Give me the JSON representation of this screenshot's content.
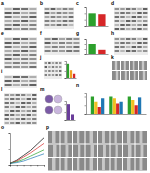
{
  "panel_labels": [
    "a",
    "b",
    "c",
    "d",
    "e",
    "f",
    "g",
    "h",
    "i",
    "j",
    "k",
    "l",
    "m",
    "n",
    "o",
    "p"
  ],
  "chart_data": [
    {
      "type": "bar",
      "categories": [
        null,
        null
      ],
      "values": [
        1,
        0.93
      ],
      "colors": [
        "#2ca02c",
        "#d62728"
      ],
      "ylim": [
        0,
        1.5
      ],
      "yticks": [
        0,
        0.5,
        1,
        1.5
      ],
      "tick_labels": false
    },
    {
      "type": "bar",
      "categories": [
        null,
        null
      ],
      "values": [
        1,
        0.42
      ],
      "colors": [
        "#2ca02c",
        "#d62728"
      ],
      "ylim": [
        0,
        1.5
      ],
      "yticks": [
        0,
        0.5,
        1,
        1.5
      ],
      "tick_labels": false
    },
    {
      "type": "bar",
      "categories": [
        null,
        null,
        null
      ],
      "values": [
        1,
        0.55,
        0.3
      ],
      "colors": [
        "#2ca02c",
        "#f0a020",
        "#d62728"
      ],
      "ylim": [
        0,
        1.2
      ],
      "yticks": [
        0,
        0.5,
        1
      ],
      "tick_labels": false
    },
    {
      "type": "bar",
      "categories": [
        null,
        null
      ],
      "values": [
        1,
        0.35
      ],
      "colors": [
        "#6a3d9a",
        "#6a3d9a"
      ],
      "ylim": [
        0,
        1.2
      ],
      "yticks": [
        0,
        0.5,
        1
      ],
      "tick_labels": false
    },
    {
      "type": "bar",
      "categories": [
        null,
        null,
        null
      ],
      "series": [
        {
          "color": "#2ca02c",
          "values": [
            1,
            1,
            1
          ]
        },
        {
          "color": "#f0c020",
          "values": [
            0.7,
            0.9,
            0.8
          ]
        },
        {
          "color": "#d62728",
          "values": [
            0.4,
            0.6,
            0.5
          ]
        },
        {
          "color": "#1f77b4",
          "values": [
            0.9,
            0.7,
            0.95
          ]
        }
      ],
      "ylim": [
        0,
        1.2
      ],
      "yticks": [
        0,
        0.5,
        1
      ],
      "tick_labels": false
    },
    {
      "type": "line",
      "x": [
        0,
        1,
        2,
        3,
        4,
        5
      ],
      "series": [
        {
          "color": "#000000",
          "values": [
            0.1,
            0.3,
            0.6,
            0.9,
            1.3,
            1.7
          ]
        },
        {
          "color": "#d62728",
          "values": [
            0.1,
            0.25,
            0.5,
            0.75,
            1.05,
            1.35
          ]
        },
        {
          "color": "#2ca02c",
          "values": [
            0.1,
            0.2,
            0.35,
            0.55,
            0.75,
            0.95
          ]
        },
        {
          "color": "#1f77b4",
          "values": [
            0.1,
            0.15,
            0.25,
            0.4,
            0.55,
            0.7
          ]
        }
      ],
      "xlim": [
        0,
        5
      ],
      "xticks": [
        0,
        1,
        2,
        3,
        4,
        5
      ],
      "ylim": [
        0,
        2
      ],
      "yticks": [
        0,
        1,
        2
      ],
      "tick_labels": false
    }
  ]
}
